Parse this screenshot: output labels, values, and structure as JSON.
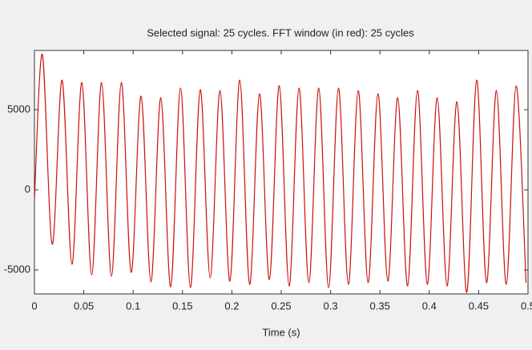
{
  "chart_data": {
    "type": "line",
    "title": "Selected signal: 25 cycles. FFT window (in red): 25 cycles",
    "x_label": "Time (s)",
    "x": [
      0,
      0.008,
      0.018,
      0.028,
      0.038,
      0.048,
      0.058,
      0.068,
      0.078,
      0.088,
      0.098,
      0.108,
      0.118,
      0.128,
      0.138,
      0.148,
      0.158,
      0.168,
      0.178,
      0.188,
      0.198,
      0.208,
      0.218,
      0.228,
      0.238,
      0.248,
      0.258,
      0.268,
      0.278,
      0.288,
      0.298,
      0.308,
      0.318,
      0.328,
      0.338,
      0.348,
      0.358,
      0.368,
      0.378,
      0.388,
      0.398,
      0.408,
      0.418,
      0.428,
      0.438,
      0.448,
      0.458,
      0.468,
      0.478,
      0.488,
      0.498
    ],
    "values": [
      -600,
      8450,
      -3400,
      6850,
      -4650,
      6700,
      -5300,
      6700,
      -5400,
      6700,
      -5150,
      5850,
      -5750,
      5750,
      -6050,
      6350,
      -6100,
      6250,
      -5500,
      6200,
      -5700,
      6850,
      -5900,
      6000,
      -5600,
      6500,
      -6000,
      6350,
      -5800,
      6350,
      -6100,
      6350,
      -5900,
      6200,
      -5800,
      6000,
      -5700,
      5750,
      -6000,
      6200,
      -5900,
      5750,
      -6000,
      5500,
      -6400,
      6850,
      -5800,
      6200,
      -5900,
      6500,
      -5800
    ],
    "color": "#cc1010",
    "xlim": [
      0,
      0.5
    ],
    "xticks": [
      0,
      0.05,
      0.1,
      0.15,
      0.2,
      0.25,
      0.3,
      0.35,
      0.4,
      0.45,
      0.5
    ],
    "ylim": [
      -6500,
      8700
    ],
    "yticks": [
      -5000,
      0,
      5000
    ],
    "grid": false
  }
}
